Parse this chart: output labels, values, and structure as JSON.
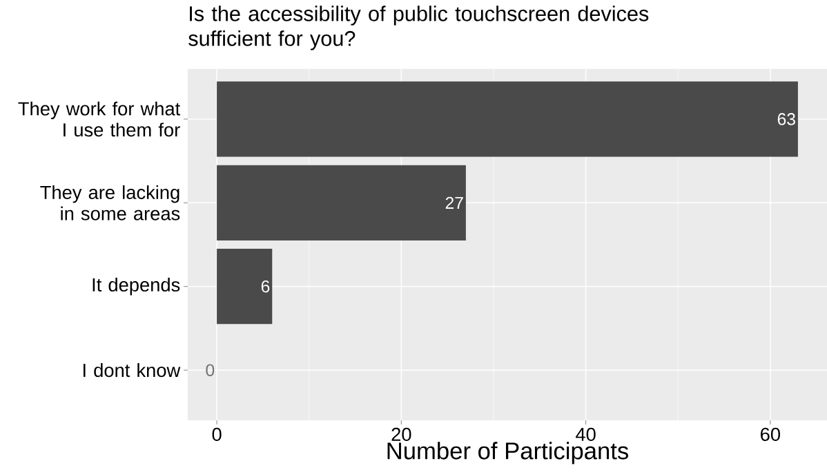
{
  "chart_data": {
    "type": "bar",
    "orientation": "horizontal",
    "title": "Is the accessibility of public touchscreen devices sufficient for you?",
    "xlabel": "Number of Participants",
    "categories": [
      "They work for what I use them for",
      "They are lacking in some areas",
      "It depends",
      "I dont know"
    ],
    "values": [
      63,
      27,
      6,
      0
    ],
    "color": "#4a4a4a",
    "data_labels": true,
    "xlim": [
      -3.15,
      66.15
    ],
    "xticks": [
      0,
      20,
      40,
      60
    ],
    "grid": true
  }
}
